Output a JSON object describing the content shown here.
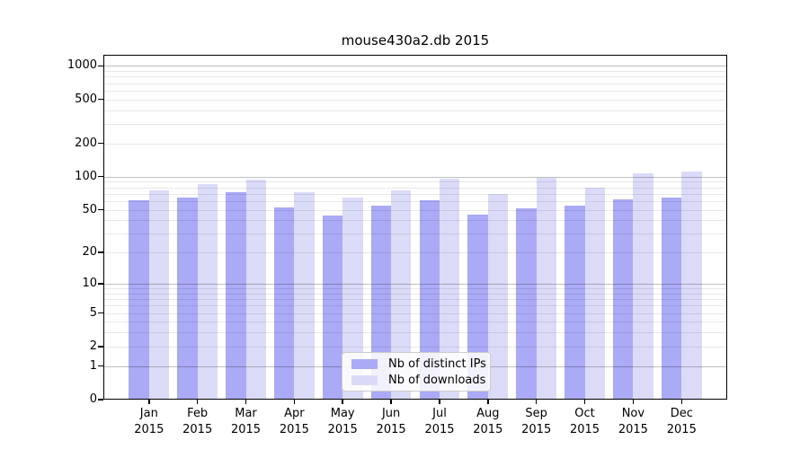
{
  "chart_data": {
    "type": "bar",
    "title": "mouse430a2.db 2015",
    "categories": [
      "Jan",
      "Feb",
      "Mar",
      "Apr",
      "May",
      "Jun",
      "Jul",
      "Aug",
      "Sep",
      "Oct",
      "Nov",
      "Dec"
    ],
    "year_label": "2015",
    "series": [
      {
        "name": "Nb of distinct IPs",
        "color": "#aaaaf6",
        "values": [
          61,
          65,
          72,
          52,
          44,
          54,
          61,
          45,
          51,
          54,
          62,
          64
        ]
      },
      {
        "name": "Nb of downloads",
        "color": "#dbdbf8",
        "values": [
          75,
          86,
          95,
          72,
          65,
          75,
          96,
          69,
          98,
          80,
          107,
          112
        ]
      }
    ],
    "y_scale": "log10(1+x)",
    "y_ticks": [
      0,
      1,
      2,
      5,
      10,
      20,
      50,
      100,
      200,
      500,
      1000
    ],
    "ylim": [
      0,
      1258
    ],
    "xlabel": "",
    "ylabel": "",
    "grid": "horizontal major+minor, drawn over bars",
    "legend_position": "lower center"
  },
  "colors": {
    "background": "#ffffff",
    "spine": "#000000",
    "text": "#000000",
    "major_grid": "rgba(0,0,0,0.25)",
    "minor_grid": "rgba(0,0,0,0.09)",
    "legend_border": "#cccccc"
  }
}
